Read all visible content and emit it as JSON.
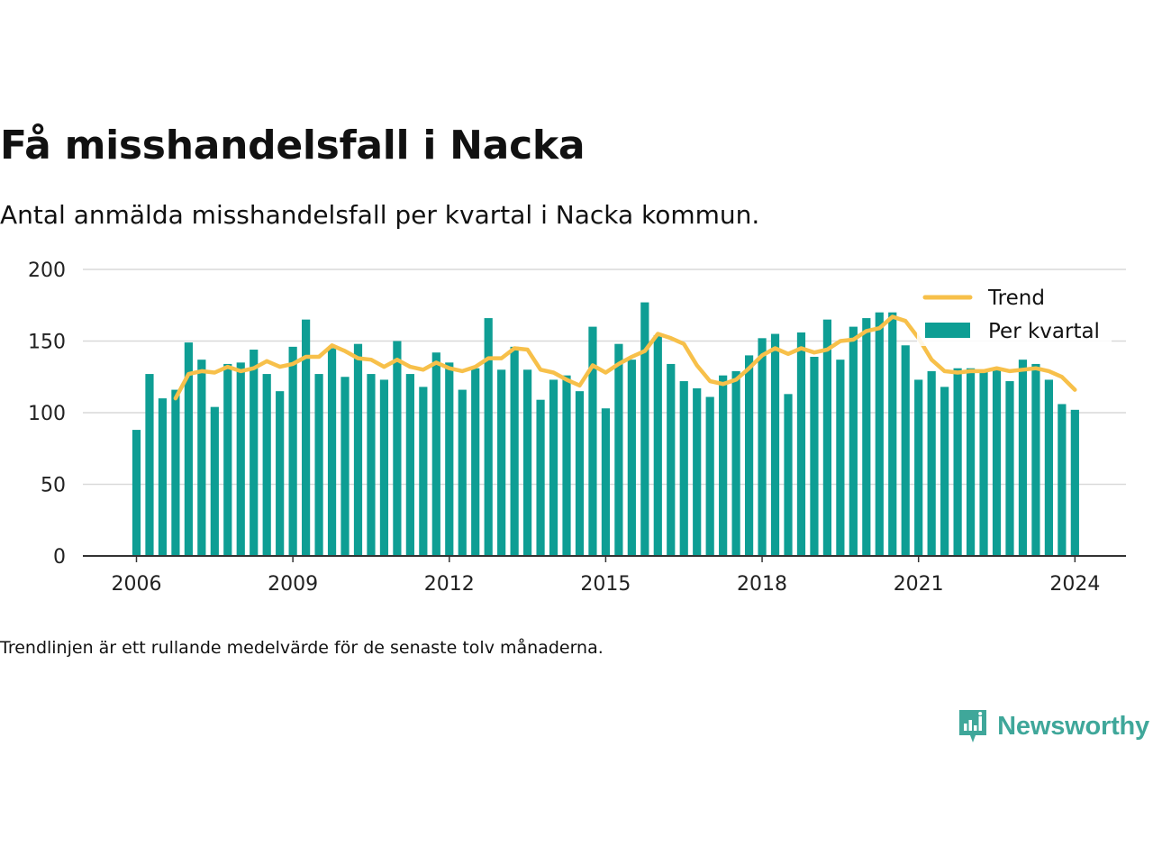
{
  "title": "Få misshandelsfall i Nacka",
  "subtitle": "Antal anmälda misshandelsfall per kvartal i Nacka kommun.",
  "footnote": "Trendlinjen är ett rullande medelvärde för de senaste tolv månaderna.",
  "brand": {
    "name": "Newsworthy",
    "icon": "newsworthy-logo-icon"
  },
  "colors": {
    "bars": "#0e9e94",
    "trend": "#f7c04a",
    "grid": "#d9d9d9",
    "axis": "#333333",
    "brand": "#3fa79a"
  },
  "chart_data": {
    "type": "bar",
    "title": "Få misshandelsfall i Nacka",
    "ylim": [
      0,
      200
    ],
    "yticks": [
      0,
      50,
      100,
      150,
      200
    ],
    "xticks": [
      "2006",
      "2009",
      "2012",
      "2015",
      "2018",
      "2021",
      "2024"
    ],
    "grid": true,
    "legend_position": "top-right",
    "legend": [
      "Trend",
      "Per kvartal"
    ],
    "start": "2006-Q1",
    "series": [
      {
        "name": "Per kvartal",
        "type": "bar",
        "values": [
          88,
          127,
          110,
          116,
          149,
          137,
          104,
          134,
          135,
          144,
          127,
          115,
          146,
          165,
          127,
          145,
          125,
          148,
          127,
          123,
          150,
          127,
          118,
          142,
          135,
          116,
          131,
          166,
          130,
          146,
          130,
          109,
          123,
          126,
          115,
          160,
          103,
          148,
          137,
          177,
          154,
          134,
          122,
          117,
          111,
          126,
          129,
          140,
          152,
          155,
          113,
          156,
          139,
          165,
          137,
          160,
          166,
          170,
          170,
          147,
          123,
          129,
          118,
          131,
          131,
          130,
          131,
          122,
          137,
          134,
          123,
          106,
          102
        ]
      },
      {
        "name": "Trend",
        "type": "line",
        "values": [
          null,
          null,
          null,
          110,
          127,
          129,
          128,
          132,
          129,
          131,
          136,
          132,
          134,
          139,
          139,
          147,
          143,
          138,
          137,
          132,
          137,
          132,
          130,
          135,
          131,
          129,
          132,
          138,
          138,
          145,
          144,
          130,
          128,
          123,
          119,
          133,
          128,
          134,
          139,
          143,
          155,
          152,
          148,
          133,
          122,
          120,
          123,
          131,
          140,
          145,
          141,
          145,
          142,
          144,
          150,
          151,
          157,
          159,
          167,
          164,
          152,
          137,
          129,
          128,
          129,
          129,
          131,
          129,
          130,
          131,
          129,
          125,
          116
        ]
      }
    ]
  }
}
